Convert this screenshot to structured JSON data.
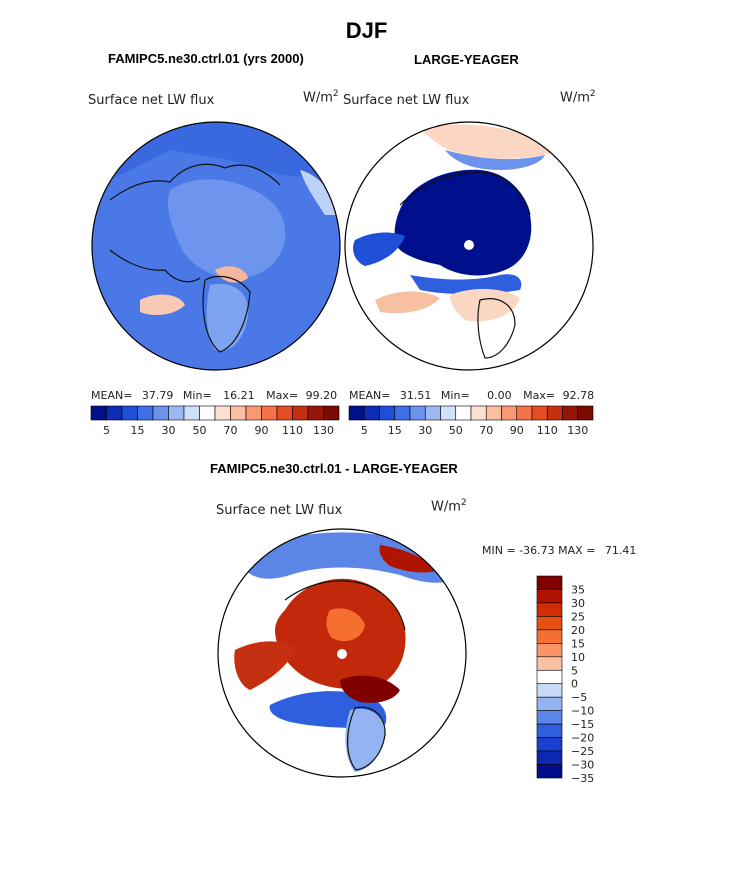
{
  "chart_data": [
    {
      "type": "heatmap",
      "projection": "north polar stereographic",
      "figure_title": "DJF",
      "panel_title": "FAMIPC5.ne30.ctrl.01 (yrs 2000)",
      "variable": "Surface net LW flux",
      "units_base": "W/m",
      "units_exp": "2",
      "stats": {
        "mean_label": "MEAN=",
        "mean": "37.79",
        "min_label": "Min=",
        "min": "16.21",
        "max_label": "Max=",
        "max": "99.20"
      },
      "colorbar_ticks": [
        "5",
        "15",
        "30",
        "50",
        "70",
        "90",
        "110",
        "130"
      ]
    },
    {
      "type": "heatmap",
      "projection": "north polar stereographic",
      "panel_title": "LARGE-YEAGER",
      "variable": "Surface net LW flux",
      "units_base": "W/m",
      "units_exp": "2",
      "stats": {
        "mean_label": "MEAN=",
        "mean": "31.51",
        "min_label": "Min=",
        "min": "0.00",
        "max_label": "Max=",
        "max": "92.78"
      },
      "colorbar_ticks": [
        "5",
        "15",
        "30",
        "50",
        "70",
        "90",
        "110",
        "130"
      ]
    },
    {
      "type": "heatmap",
      "projection": "north polar stereographic",
      "panel_title": "FAMIPC5.ne30.ctrl.01 - LARGE-YEAGER",
      "variable": "Surface net LW flux",
      "units_base": "W/m",
      "units_exp": "2",
      "minmax": {
        "min_label": "MIN =",
        "min": "-36.73",
        "max_label": "MAX =",
        "max": "71.41"
      },
      "colorbar_ticks": [
        "35",
        "30",
        "25",
        "20",
        "15",
        "10",
        "5",
        "0",
        "−5",
        "−10",
        "−15",
        "−20",
        "−25",
        "−30",
        "−35"
      ]
    }
  ],
  "colors": {
    "seq_scale": [
      "#000f8c",
      "#0d2cb5",
      "#1e4fd6",
      "#3f6fe6",
      "#6b93ee",
      "#9db9f4",
      "#cfe0fb",
      "#ffffff",
      "#fde0cf",
      "#fcbea3",
      "#f99974",
      "#f4734a",
      "#e54e22",
      "#c53010",
      "#961608",
      "#7a0a05"
    ],
    "diff_scale": [
      "#800000",
      "#b01400",
      "#d12e04",
      "#e8500f",
      "#f57030",
      "#fa9468",
      "#fcc0a2",
      "#ffffff",
      "#c8daf7",
      "#93b3f1",
      "#5b86e7",
      "#2d5fdf",
      "#1a3fce",
      "#0c27b0",
      "#000e8c"
    ]
  }
}
